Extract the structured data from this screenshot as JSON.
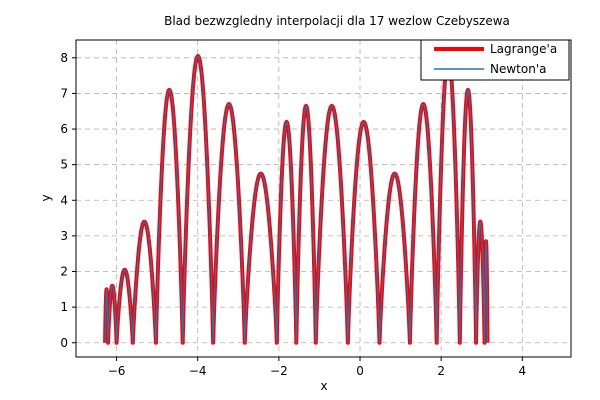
{
  "chart_data": {
    "type": "line",
    "title": "Blad bezwzgledny interpolacji dla 17 wezlow Czebyszewa",
    "xlabel": "x",
    "ylabel": "y",
    "xlim": [
      -7.0,
      5.2
    ],
    "ylim": [
      -0.4,
      8.5
    ],
    "xticks": [
      -6,
      -4,
      -2,
      0,
      2,
      4
    ],
    "yticks": [
      0,
      1,
      2,
      3,
      4,
      5,
      6,
      7,
      8
    ],
    "grid": true,
    "legend_position": "top-right",
    "domain": [
      -6.2832,
      3.1416
    ],
    "nodes": [
      -6.21,
      -6.0,
      -5.6,
      -5.03,
      -4.37,
      -3.62,
      -2.84,
      -2.05,
      -1.57,
      -1.09,
      -0.3,
      0.48,
      1.23,
      1.89,
      2.46,
      2.86,
      3.07
    ],
    "peaks": [
      {
        "x": -6.23,
        "y": 1.5
      },
      {
        "x": -6.12,
        "y": 1.6
      },
      {
        "x": -5.93,
        "y": 2.05
      },
      {
        "x": -5.52,
        "y": 3.4
      },
      {
        "x": -5.1,
        "y": 7.1
      },
      {
        "x": -4.37,
        "y": 8.05
      },
      {
        "x": -3.62,
        "y": 6.7
      },
      {
        "x": -3.05,
        "y": 4.75
      },
      {
        "x": -2.68,
        "y": 6.2
      },
      {
        "x": -2.15,
        "y": 6.65
      },
      {
        "x": -1.0,
        "y": 6.65
      },
      {
        "x": -0.55,
        "y": 6.2
      },
      {
        "x": -0.1,
        "y": 4.75
      },
      {
        "x": 0.5,
        "y": 6.7
      },
      {
        "x": 1.22,
        "y": 8.05
      },
      {
        "x": 1.95,
        "y": 7.1
      },
      {
        "x": 2.43,
        "y": 3.4
      },
      {
        "x": 2.82,
        "y": 2.85
      },
      {
        "x": 3.02,
        "y": 1.6
      },
      {
        "x": 3.12,
        "y": 1.5
      }
    ],
    "series": [
      {
        "name": "Lagrange'a",
        "color": "#ff0000"
      },
      {
        "name": "Newton'a",
        "color": "#1f77b4"
      }
    ]
  }
}
